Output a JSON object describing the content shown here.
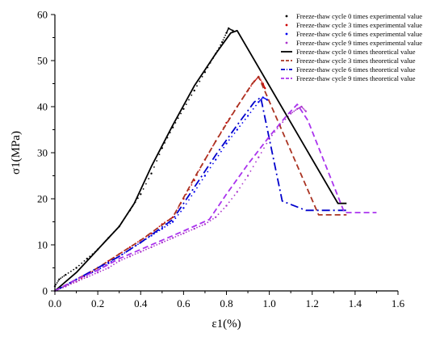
{
  "chart_data": {
    "type": "line",
    "xlabel": "ε1(%)",
    "ylabel": "σ1(MPa)",
    "xlim": [
      0.0,
      1.6
    ],
    "ylim": [
      0,
      60
    ],
    "xticks": [
      "0.0",
      "0.2",
      "0.4",
      "0.6",
      "0.8",
      "1.0",
      "1.2",
      "1.4",
      "1.6"
    ],
    "yticks": [
      "0",
      "10",
      "20",
      "30",
      "40",
      "50",
      "60"
    ],
    "grid": false,
    "legend_position": "top-right",
    "series": [
      {
        "name": "Freeze-thaw cycle 0 times experimental value",
        "kind": "experimental",
        "color": "#000000",
        "points": [
          [
            0.0,
            1.0
          ],
          [
            0.02,
            2.5
          ],
          [
            0.05,
            3.5
          ],
          [
            0.1,
            5.0
          ],
          [
            0.15,
            7.0
          ],
          [
            0.2,
            9.0
          ],
          [
            0.25,
            11.5
          ],
          [
            0.3,
            14.0
          ],
          [
            0.35,
            17.5
          ],
          [
            0.4,
            21.0
          ],
          [
            0.45,
            25.5
          ],
          [
            0.5,
            31.0
          ],
          [
            0.55,
            35.5
          ],
          [
            0.6,
            39.5
          ],
          [
            0.65,
            43.5
          ],
          [
            0.7,
            47.5
          ],
          [
            0.75,
            51.5
          ],
          [
            0.78,
            54.0
          ],
          [
            0.8,
            56.0
          ],
          [
            0.81,
            57.0
          ],
          [
            0.83,
            56.5
          ]
        ]
      },
      {
        "name": "Freeze-thaw cycle 3 times experimental value",
        "kind": "experimental",
        "color": "#cc0000",
        "points": [
          [
            0.0,
            0.0
          ],
          [
            0.05,
            1.0
          ],
          [
            0.1,
            2.0
          ],
          [
            0.15,
            3.5
          ],
          [
            0.2,
            5.0
          ],
          [
            0.25,
            6.5
          ],
          [
            0.3,
            8.0
          ],
          [
            0.35,
            9.5
          ],
          [
            0.4,
            11.0
          ],
          [
            0.45,
            12.5
          ],
          [
            0.5,
            14.5
          ],
          [
            0.55,
            16.0
          ],
          [
            0.6,
            20.0
          ],
          [
            0.65,
            24.0
          ],
          [
            0.7,
            28.5
          ],
          [
            0.75,
            32.5
          ],
          [
            0.8,
            36.5
          ],
          [
            0.85,
            40.0
          ],
          [
            0.9,
            43.5
          ],
          [
            0.93,
            45.5
          ],
          [
            0.95,
            46.5
          ],
          [
            0.97,
            45.0
          ],
          [
            0.98,
            44.0
          ]
        ]
      },
      {
        "name": "Freeze-thaw cycle 6 times experimental value",
        "kind": "experimental",
        "color": "#0000ee",
        "points": [
          [
            0.0,
            0.0
          ],
          [
            0.05,
            1.0
          ],
          [
            0.1,
            2.5
          ],
          [
            0.15,
            3.5
          ],
          [
            0.2,
            4.5
          ],
          [
            0.25,
            6.0
          ],
          [
            0.3,
            7.5
          ],
          [
            0.35,
            9.0
          ],
          [
            0.4,
            10.5
          ],
          [
            0.45,
            12.0
          ],
          [
            0.5,
            13.5
          ],
          [
            0.55,
            15.0
          ],
          [
            0.6,
            18.0
          ],
          [
            0.65,
            21.5
          ],
          [
            0.7,
            25.0
          ],
          [
            0.75,
            28.5
          ],
          [
            0.8,
            32.0
          ],
          [
            0.85,
            35.0
          ],
          [
            0.9,
            38.0
          ],
          [
            0.95,
            41.0
          ],
          [
            0.97,
            42.0
          ],
          [
            0.99,
            41.5
          ]
        ]
      },
      {
        "name": "Freeze-thaw cycle 9 times experimental value",
        "kind": "experimental",
        "color": "#aa33cc",
        "points": [
          [
            0.0,
            0.0
          ],
          [
            0.05,
            1.0
          ],
          [
            0.1,
            2.0
          ],
          [
            0.15,
            3.0
          ],
          [
            0.2,
            4.0
          ],
          [
            0.25,
            5.0
          ],
          [
            0.3,
            6.5
          ],
          [
            0.35,
            7.5
          ],
          [
            0.4,
            8.5
          ],
          [
            0.45,
            9.5
          ],
          [
            0.5,
            10.5
          ],
          [
            0.55,
            11.5
          ],
          [
            0.6,
            12.5
          ],
          [
            0.65,
            13.5
          ],
          [
            0.7,
            14.5
          ],
          [
            0.75,
            16.0
          ],
          [
            0.8,
            18.5
          ],
          [
            0.85,
            21.5
          ],
          [
            0.9,
            25.0
          ],
          [
            0.95,
            29.0
          ],
          [
            1.0,
            33.0
          ],
          [
            1.05,
            36.0
          ],
          [
            1.1,
            38.5
          ],
          [
            1.13,
            39.5
          ],
          [
            1.15,
            40.0
          ],
          [
            1.17,
            39.0
          ]
        ]
      },
      {
        "name": "Freeze-thaw cycle 0 times theoretical value",
        "kind": "theoretical",
        "color": "#000000",
        "dash": "solid",
        "points": [
          [
            0.0,
            0.0
          ],
          [
            0.1,
            4.0
          ],
          [
            0.2,
            9.0
          ],
          [
            0.3,
            14.0
          ],
          [
            0.37,
            19.0
          ],
          [
            0.45,
            27.0
          ],
          [
            0.55,
            36.0
          ],
          [
            0.65,
            44.5
          ],
          [
            0.75,
            51.5
          ],
          [
            0.82,
            56.0
          ],
          [
            0.85,
            56.5
          ],
          [
            1.32,
            19.0
          ],
          [
            1.36,
            19.0
          ]
        ]
      },
      {
        "name": "Freeze-thaw cycle 3 times theoretical value",
        "kind": "theoretical",
        "color": "#aa3322",
        "dash": "dashed",
        "points": [
          [
            0.0,
            0.0
          ],
          [
            0.1,
            2.5
          ],
          [
            0.2,
            5.0
          ],
          [
            0.3,
            8.0
          ],
          [
            0.4,
            11.0
          ],
          [
            0.55,
            16.0
          ],
          [
            0.65,
            24.5
          ],
          [
            0.75,
            32.5
          ],
          [
            0.85,
            40.0
          ],
          [
            0.92,
            45.0
          ],
          [
            0.95,
            46.5
          ],
          [
            1.23,
            16.5
          ],
          [
            1.36,
            16.5
          ]
        ]
      },
      {
        "name": "Freeze-thaw cycle 6 times theoretical value",
        "kind": "theoretical",
        "color": "#0000cc",
        "dash": "dashdot",
        "points": [
          [
            0.0,
            0.0
          ],
          [
            0.1,
            2.5
          ],
          [
            0.2,
            5.0
          ],
          [
            0.3,
            7.5
          ],
          [
            0.4,
            10.5
          ],
          [
            0.55,
            15.5
          ],
          [
            0.65,
            22.5
          ],
          [
            0.75,
            29.5
          ],
          [
            0.85,
            36.0
          ],
          [
            0.93,
            41.0
          ],
          [
            0.96,
            42.0
          ],
          [
            1.06,
            19.5
          ],
          [
            1.17,
            17.5
          ],
          [
            1.36,
            17.5
          ]
        ]
      },
      {
        "name": "Freeze-thaw cycle 9 times theoretical value",
        "kind": "theoretical",
        "color": "#aa33ee",
        "dash": "dashed",
        "points": [
          [
            0.0,
            0.0
          ],
          [
            0.1,
            2.5
          ],
          [
            0.2,
            4.5
          ],
          [
            0.3,
            7.0
          ],
          [
            0.4,
            9.0
          ],
          [
            0.5,
            11.0
          ],
          [
            0.6,
            13.0
          ],
          [
            0.72,
            15.5
          ],
          [
            0.8,
            21.0
          ],
          [
            0.9,
            27.5
          ],
          [
            1.0,
            33.5
          ],
          [
            1.08,
            38.0
          ],
          [
            1.13,
            40.5
          ],
          [
            1.18,
            37.0
          ],
          [
            1.35,
            17.0
          ],
          [
            1.5,
            17.0
          ]
        ]
      }
    ]
  }
}
